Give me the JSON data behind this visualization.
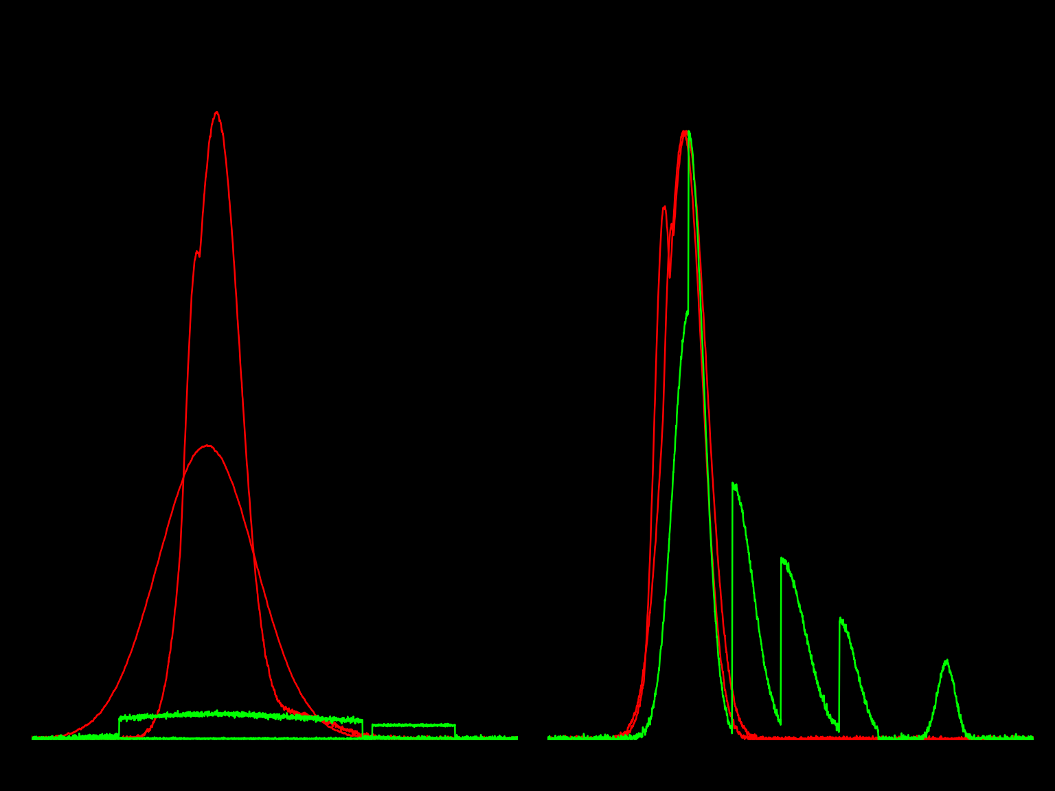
{
  "background_color": "#000000",
  "line_color_red": "#ff0000",
  "line_color_green": "#00ff00",
  "figsize": [
    15.36,
    11.52
  ],
  "dpi": 100
}
